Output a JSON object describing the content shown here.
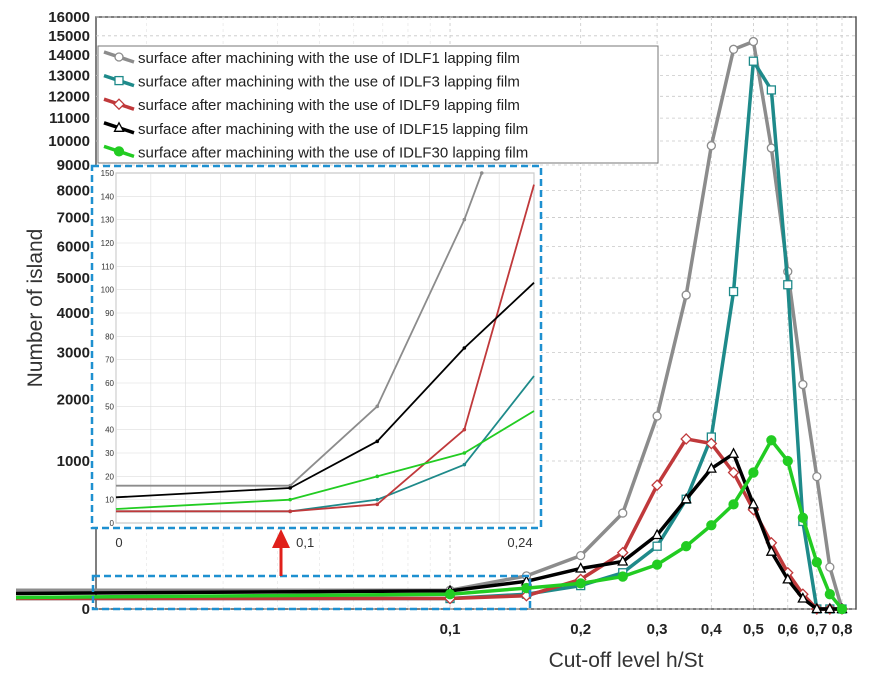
{
  "chart_data": [
    {
      "type": "line",
      "title": "",
      "xlabel": "Cut-off level h/St",
      "ylabel": "Number of island",
      "x_ticks": [
        "0,1",
        "0,2",
        "0,3",
        "0,4",
        "0,5",
        "0,6",
        "0,7",
        "0,8"
      ],
      "y_ticks": [
        "0",
        "1000",
        "2000",
        "3000",
        "4000",
        "5000",
        "6000",
        "7000",
        "8000",
        "9000",
        "10000",
        "11000",
        "12000",
        "13000",
        "14000",
        "15000",
        "16000"
      ],
      "xlim": [
        0.01,
        0.8
      ],
      "ylim": [
        0,
        16000
      ],
      "y_scale": "sqrt",
      "grid": true,
      "legend_position": "top-left",
      "series": [
        {
          "name": "surface after machining with the use of IDLF1 lapping film",
          "color": "#8c8c8c",
          "marker": "circle-open",
          "x": [
            0.01,
            0.1,
            0.15,
            0.2,
            0.25,
            0.3,
            0.35,
            0.4,
            0.45,
            0.5,
            0.55,
            0.6,
            0.65,
            0.7,
            0.75,
            0.8
          ],
          "y": [
            16,
            16,
            50,
            130,
            420,
            1700,
            4500,
            9800,
            14300,
            14700,
            9700,
            5200,
            2300,
            800,
            80,
            0
          ]
        },
        {
          "name": "surface after machining with the use of IDLF3 lapping film",
          "color": "#1e8a8a",
          "marker": "square-open",
          "x": [
            0.01,
            0.1,
            0.15,
            0.2,
            0.25,
            0.3,
            0.35,
            0.4,
            0.45,
            0.5,
            0.55,
            0.6,
            0.65,
            0.7,
            0.75,
            0.8
          ],
          "y": [
            5,
            5,
            10,
            25,
            60,
            180,
            550,
            1350,
            4600,
            13700,
            12300,
            4800,
            350,
            0,
            0,
            0
          ]
        },
        {
          "name": "surface after machining with the use of IDLF9 lapping film",
          "color": "#c0393b",
          "marker": "diamond-open",
          "x": [
            0.01,
            0.1,
            0.15,
            0.2,
            0.25,
            0.3,
            0.35,
            0.4,
            0.45,
            0.5,
            0.55,
            0.6,
            0.65,
            0.7,
            0.75,
            0.8
          ],
          "y": [
            5,
            5,
            8,
            40,
            145,
            700,
            1320,
            1250,
            850,
            450,
            200,
            60,
            10,
            0,
            0,
            0
          ]
        },
        {
          "name": "surface after machining with the use of IDLF15 lapping film",
          "color": "#000000",
          "marker": "triangle-open",
          "x": [
            0.01,
            0.1,
            0.15,
            0.2,
            0.25,
            0.3,
            0.35,
            0.4,
            0.45,
            0.5,
            0.55,
            0.6,
            0.65,
            0.7,
            0.75,
            0.8
          ],
          "y": [
            11,
            15,
            35,
            75,
            103,
            250,
            550,
            900,
            1100,
            500,
            150,
            40,
            5,
            0,
            0,
            0
          ]
        },
        {
          "name": "surface after machining with the use of IDLF30 lapping film",
          "color": "#22cc22",
          "marker": "circle-filled",
          "x": [
            0.01,
            0.1,
            0.15,
            0.2,
            0.25,
            0.3,
            0.35,
            0.4,
            0.45,
            0.5,
            0.55,
            0.6,
            0.65,
            0.7,
            0.75,
            0.8
          ],
          "y": [
            6,
            10,
            20,
            30,
            48,
            90,
            180,
            320,
            500,
            850,
            1300,
            1000,
            380,
            100,
            10,
            0
          ]
        }
      ]
    },
    {
      "type": "line",
      "title": "",
      "inset": true,
      "x_ticks": [
        "0",
        "0,1",
        "0,24"
      ],
      "y_ticks": [
        "0",
        "10",
        "20",
        "30",
        "40",
        "50",
        "60",
        "70",
        "80",
        "90",
        "100",
        "110",
        "120",
        "130",
        "140",
        "150"
      ],
      "xlim": [
        0,
        0.24
      ],
      "ylim": [
        0,
        150
      ],
      "grid": true,
      "series": [
        {
          "name": "IDLF1",
          "color": "#8c8c8c",
          "x": [
            0,
            0.1,
            0.15,
            0.2,
            0.21
          ],
          "y": [
            16,
            16,
            50,
            130,
            150
          ]
        },
        {
          "name": "IDLF3",
          "color": "#1e8a8a",
          "x": [
            0,
            0.1,
            0.15,
            0.2,
            0.24
          ],
          "y": [
            5,
            5,
            10,
            25,
            63
          ]
        },
        {
          "name": "IDLF9",
          "color": "#c0393b",
          "x": [
            0,
            0.1,
            0.15,
            0.2,
            0.24
          ],
          "y": [
            5,
            5,
            8,
            40,
            145
          ]
        },
        {
          "name": "IDLF15",
          "color": "#000000",
          "x": [
            0,
            0.1,
            0.15,
            0.2,
            0.24
          ],
          "y": [
            11,
            15,
            35,
            75,
            103
          ]
        },
        {
          "name": "IDLF30",
          "color": "#22cc22",
          "x": [
            0,
            0.1,
            0.15,
            0.2,
            0.24
          ],
          "y": [
            6,
            10,
            20,
            30,
            48
          ]
        }
      ]
    }
  ],
  "colors": {
    "highlight_box": "#1e90d0",
    "arrow": "#e0201b"
  }
}
